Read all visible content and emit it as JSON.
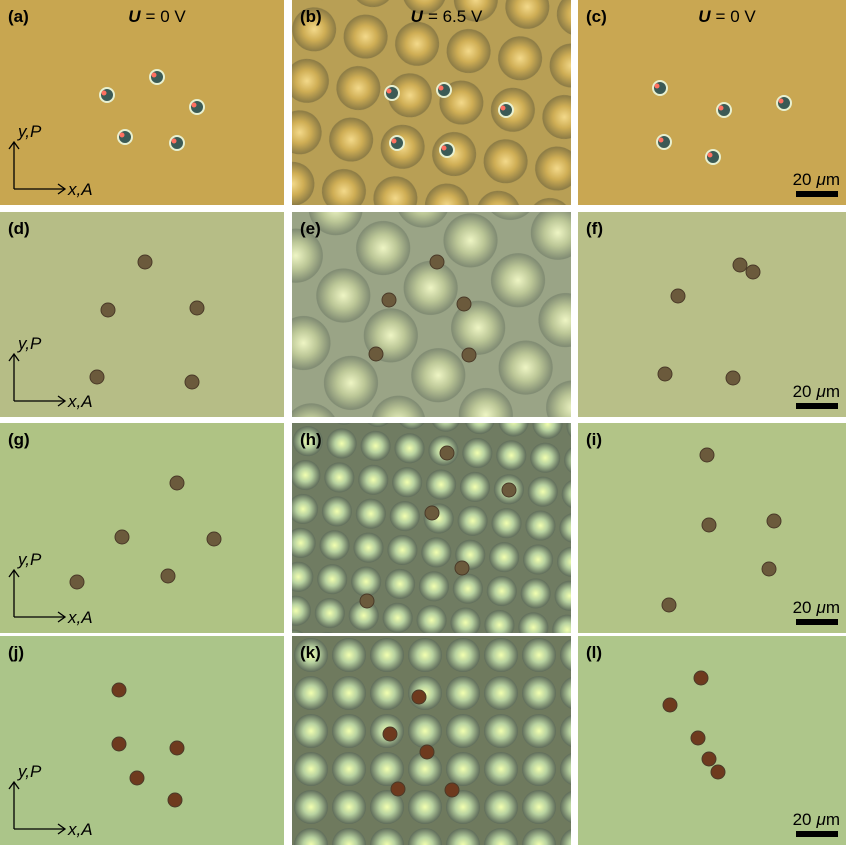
{
  "panels": [
    {
      "label": "(a)",
      "voltage": {
        "symbol": "U",
        "text": "= 0 V"
      },
      "axes": {
        "y": "y,P",
        "x": "x,A"
      }
    },
    {
      "label": "(b)",
      "voltage": {
        "symbol": "U",
        "text": "= 6.5 V"
      }
    },
    {
      "label": "(c)",
      "voltage": {
        "symbol": "U",
        "text": "= 0 V"
      },
      "scale": {
        "number": "20",
        "symbol": "μ",
        "unit": "m"
      }
    },
    {
      "label": "(d)",
      "axes": {
        "y": "y,P",
        "x": "x,A"
      }
    },
    {
      "label": "(e)"
    },
    {
      "label": "(f)",
      "scale": {
        "number": "20",
        "symbol": "μ",
        "unit": "m"
      }
    },
    {
      "label": "(g)",
      "axes": {
        "y": "y,P",
        "x": "x,A"
      }
    },
    {
      "label": "(h)"
    },
    {
      "label": "(i)",
      "scale": {
        "number": "20",
        "symbol": "μ",
        "unit": "m"
      }
    },
    {
      "label": "(j)",
      "axes": {
        "y": "y,P",
        "x": "x,A"
      }
    },
    {
      "label": "(k)"
    },
    {
      "label": "(l)",
      "scale": {
        "number": "20",
        "symbol": "μ",
        "unit": "m"
      }
    }
  ]
}
